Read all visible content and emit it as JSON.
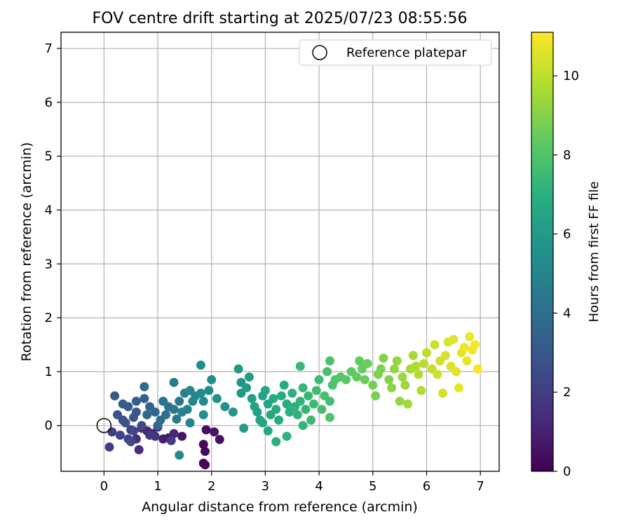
{
  "chart_data": {
    "type": "scatter",
    "title": "FOV centre drift starting at 2025/07/23 08:55:56",
    "xlabel": "Angular distance from reference (arcmin)",
    "ylabel": "Rotation from reference (arcmin)",
    "xlim": [
      -0.8,
      7.35
    ],
    "ylim": [
      -0.85,
      7.3
    ],
    "xticks": [
      0,
      1,
      2,
      3,
      4,
      5,
      6,
      7
    ],
    "yticks": [
      0,
      1,
      2,
      3,
      4,
      5,
      6,
      7
    ],
    "grid": true,
    "legend": {
      "placement": "top-right",
      "entries": [
        {
          "label": "Reference platepar",
          "marker": "open-circle"
        }
      ]
    },
    "reference_point": {
      "x": 0,
      "y": 0
    },
    "colorbar": {
      "label": "Hours from first FF file",
      "colormap": "viridis",
      "range": [
        0,
        11.1
      ],
      "ticks": [
        0,
        2,
        4,
        6,
        8,
        10
      ]
    },
    "series": [
      {
        "points": [
          [
            1.85,
            -0.7,
            0.1
          ],
          [
            1.88,
            -0.73,
            0.2
          ],
          [
            1.85,
            -0.35,
            0.25
          ],
          [
            1.88,
            -0.48,
            0.3
          ],
          [
            1.9,
            -0.08,
            0.4
          ],
          [
            2.15,
            -0.26,
            0.5
          ],
          [
            2.05,
            -0.12,
            0.6
          ],
          [
            1.45,
            -0.2,
            0.7
          ],
          [
            1.2,
            -0.23,
            0.8
          ],
          [
            1.1,
            -0.25,
            0.9
          ],
          [
            0.9,
            -0.15,
            1.0
          ],
          [
            0.8,
            -0.1,
            1.1
          ],
          [
            1.3,
            -0.15,
            1.2
          ],
          [
            0.7,
            -0.05,
            1.3
          ],
          [
            0.65,
            -0.45,
            1.4
          ],
          [
            0.6,
            -0.25,
            1.5
          ],
          [
            0.95,
            -0.2,
            1.6
          ],
          [
            1.0,
            -0.03,
            1.7
          ],
          [
            0.85,
            -0.18,
            1.8
          ],
          [
            1.25,
            -0.28,
            1.9
          ],
          [
            0.5,
            -0.08,
            2.0
          ],
          [
            0.1,
            -0.4,
            2.0
          ],
          [
            0.15,
            -0.12,
            2.1
          ],
          [
            0.3,
            -0.18,
            2.2
          ],
          [
            0.45,
            -0.25,
            2.3
          ],
          [
            0.55,
            -0.1,
            2.4
          ],
          [
            0.7,
            0.0,
            2.5
          ],
          [
            0.5,
            -0.3,
            2.5
          ],
          [
            0.35,
            0.1,
            2.6
          ],
          [
            0.25,
            0.2,
            2.7
          ],
          [
            0.4,
            0.05,
            2.8
          ],
          [
            0.55,
            0.15,
            2.9
          ],
          [
            0.2,
            0.55,
            3.0
          ],
          [
            0.6,
            0.25,
            3.0
          ],
          [
            0.45,
            0.35,
            3.1
          ],
          [
            0.35,
            0.4,
            3.2
          ],
          [
            0.6,
            0.45,
            3.3
          ],
          [
            0.75,
            0.5,
            3.4
          ],
          [
            0.85,
            0.35,
            3.5
          ],
          [
            0.95,
            0.25,
            3.6
          ],
          [
            1.0,
            0.0,
            3.7
          ],
          [
            0.8,
            0.2,
            3.8
          ],
          [
            0.75,
            0.72,
            3.8
          ],
          [
            1.05,
            0.1,
            3.9
          ],
          [
            1.15,
            0.2,
            4.0
          ],
          [
            1.2,
            0.35,
            4.1
          ],
          [
            1.1,
            0.45,
            4.2
          ],
          [
            1.3,
            0.3,
            4.3
          ],
          [
            1.4,
            0.45,
            4.4
          ],
          [
            1.35,
            0.12,
            4.5
          ],
          [
            1.3,
            0.8,
            4.6
          ],
          [
            1.5,
            0.6,
            4.7
          ],
          [
            1.45,
            0.25,
            4.8
          ],
          [
            1.6,
            0.05,
            4.9
          ],
          [
            1.55,
            0.3,
            5.0
          ],
          [
            1.65,
            0.45,
            5.1
          ],
          [
            1.7,
            0.55,
            5.1
          ],
          [
            1.8,
            0.6,
            5.2
          ],
          [
            1.85,
            0.45,
            5.3
          ],
          [
            1.4,
            -0.55,
            5.3
          ],
          [
            1.95,
            0.65,
            5.4
          ],
          [
            1.8,
            1.12,
            5.4
          ],
          [
            2.0,
            0.85,
            5.5
          ],
          [
            1.85,
            0.2,
            5.5
          ],
          [
            2.1,
            0.5,
            5.6
          ],
          [
            2.25,
            0.35,
            5.7
          ],
          [
            2.4,
            0.25,
            5.8
          ],
          [
            2.55,
            0.8,
            5.8
          ],
          [
            2.5,
            1.05,
            5.9
          ],
          [
            2.65,
            0.7,
            6.0
          ],
          [
            2.55,
            0.6,
            6.0
          ],
          [
            2.7,
            0.9,
            6.1
          ],
          [
            2.6,
            -0.05,
            6.1
          ],
          [
            2.75,
            0.5,
            6.2
          ],
          [
            2.8,
            0.35,
            6.3
          ],
          [
            2.85,
            0.25,
            6.3
          ],
          [
            2.9,
            0.1,
            6.4
          ],
          [
            2.95,
            0.55,
            6.4
          ],
          [
            3.0,
            0.65,
            6.5
          ],
          [
            3.05,
            0.4,
            6.5
          ],
          [
            3.1,
            0.2,
            6.6
          ],
          [
            3.05,
            -0.1,
            6.6
          ],
          [
            3.15,
            0.5,
            6.7
          ],
          [
            3.2,
            0.3,
            6.7
          ],
          [
            3.25,
            0.1,
            6.8
          ],
          [
            3.3,
            0.55,
            6.8
          ],
          [
            3.35,
            0.75,
            6.9
          ],
          [
            3.4,
            0.4,
            6.9
          ],
          [
            3.45,
            0.25,
            7.0
          ],
          [
            3.2,
            -0.3,
            7.0
          ],
          [
            3.5,
            0.6,
            7.1
          ],
          [
            3.55,
            0.35,
            7.1
          ],
          [
            3.6,
            0.2,
            7.2
          ],
          [
            3.65,
            0.45,
            7.2
          ],
          [
            3.7,
            0.7,
            7.3
          ],
          [
            3.75,
            0.3,
            7.3
          ],
          [
            3.65,
            1.1,
            7.4
          ],
          [
            3.8,
            0.55,
            7.4
          ],
          [
            3.85,
            0.1,
            7.5
          ],
          [
            3.9,
            0.4,
            7.5
          ],
          [
            3.95,
            0.65,
            7.6
          ],
          [
            4.0,
            0.85,
            7.6
          ],
          [
            4.05,
            0.3,
            7.7
          ],
          [
            4.1,
            0.55,
            7.8
          ],
          [
            4.15,
            1.0,
            7.8
          ],
          [
            4.2,
            1.2,
            7.9
          ],
          [
            4.25,
            0.75,
            7.9
          ],
          [
            4.3,
            0.85,
            8.0
          ],
          [
            4.2,
            0.15,
            8.0
          ],
          [
            4.4,
            0.9,
            8.1
          ],
          [
            4.5,
            0.85,
            8.2
          ],
          [
            4.6,
            1.0,
            8.3
          ],
          [
            4.7,
            0.9,
            8.4
          ],
          [
            4.75,
            1.2,
            8.4
          ],
          [
            4.8,
            1.05,
            8.5
          ],
          [
            4.85,
            0.85,
            8.5
          ],
          [
            4.9,
            1.15,
            8.6
          ],
          [
            5.0,
            0.75,
            8.7
          ],
          [
            5.05,
            0.55,
            8.8
          ],
          [
            5.1,
            0.95,
            8.8
          ],
          [
            5.15,
            1.05,
            8.9
          ],
          [
            5.2,
            1.25,
            9.0
          ],
          [
            5.3,
            0.85,
            9.0
          ],
          [
            5.35,
            0.7,
            9.1
          ],
          [
            5.4,
            1.05,
            9.2
          ],
          [
            5.45,
            1.2,
            9.3
          ],
          [
            5.5,
            0.45,
            9.3
          ],
          [
            5.55,
            0.9,
            9.4
          ],
          [
            5.6,
            0.75,
            9.4
          ],
          [
            5.65,
            0.4,
            9.5
          ],
          [
            5.7,
            1.05,
            9.6
          ],
          [
            5.75,
            1.3,
            9.6
          ],
          [
            5.8,
            1.1,
            9.7
          ],
          [
            5.85,
            0.95,
            9.8
          ],
          [
            5.9,
            0.65,
            9.8
          ],
          [
            5.95,
            1.15,
            9.9
          ],
          [
            6.0,
            1.35,
            10.0
          ],
          [
            6.1,
            1.05,
            10.1
          ],
          [
            6.15,
            1.5,
            10.2
          ],
          [
            6.2,
            0.95,
            10.3
          ],
          [
            6.25,
            1.2,
            10.3
          ],
          [
            6.3,
            0.6,
            10.4
          ],
          [
            6.35,
            1.3,
            10.4
          ],
          [
            6.4,
            1.55,
            10.5
          ],
          [
            6.45,
            1.1,
            10.5
          ],
          [
            6.5,
            1.6,
            10.6
          ],
          [
            6.55,
            1.0,
            10.6
          ],
          [
            6.6,
            0.7,
            10.7
          ],
          [
            6.65,
            1.35,
            10.7
          ],
          [
            6.7,
            1.45,
            10.8
          ],
          [
            6.75,
            1.2,
            10.8
          ],
          [
            6.8,
            1.65,
            10.9
          ],
          [
            6.85,
            1.4,
            10.9
          ],
          [
            6.9,
            1.5,
            11.0
          ],
          [
            6.95,
            1.05,
            11.0
          ],
          [
            4.2,
            0.45,
            7.7
          ],
          [
            3.7,
            0.0,
            7.2
          ],
          [
            3.4,
            -0.2,
            7.1
          ],
          [
            2.95,
            0.05,
            6.5
          ],
          [
            1.6,
            0.65,
            5.0
          ]
        ]
      }
    ]
  }
}
